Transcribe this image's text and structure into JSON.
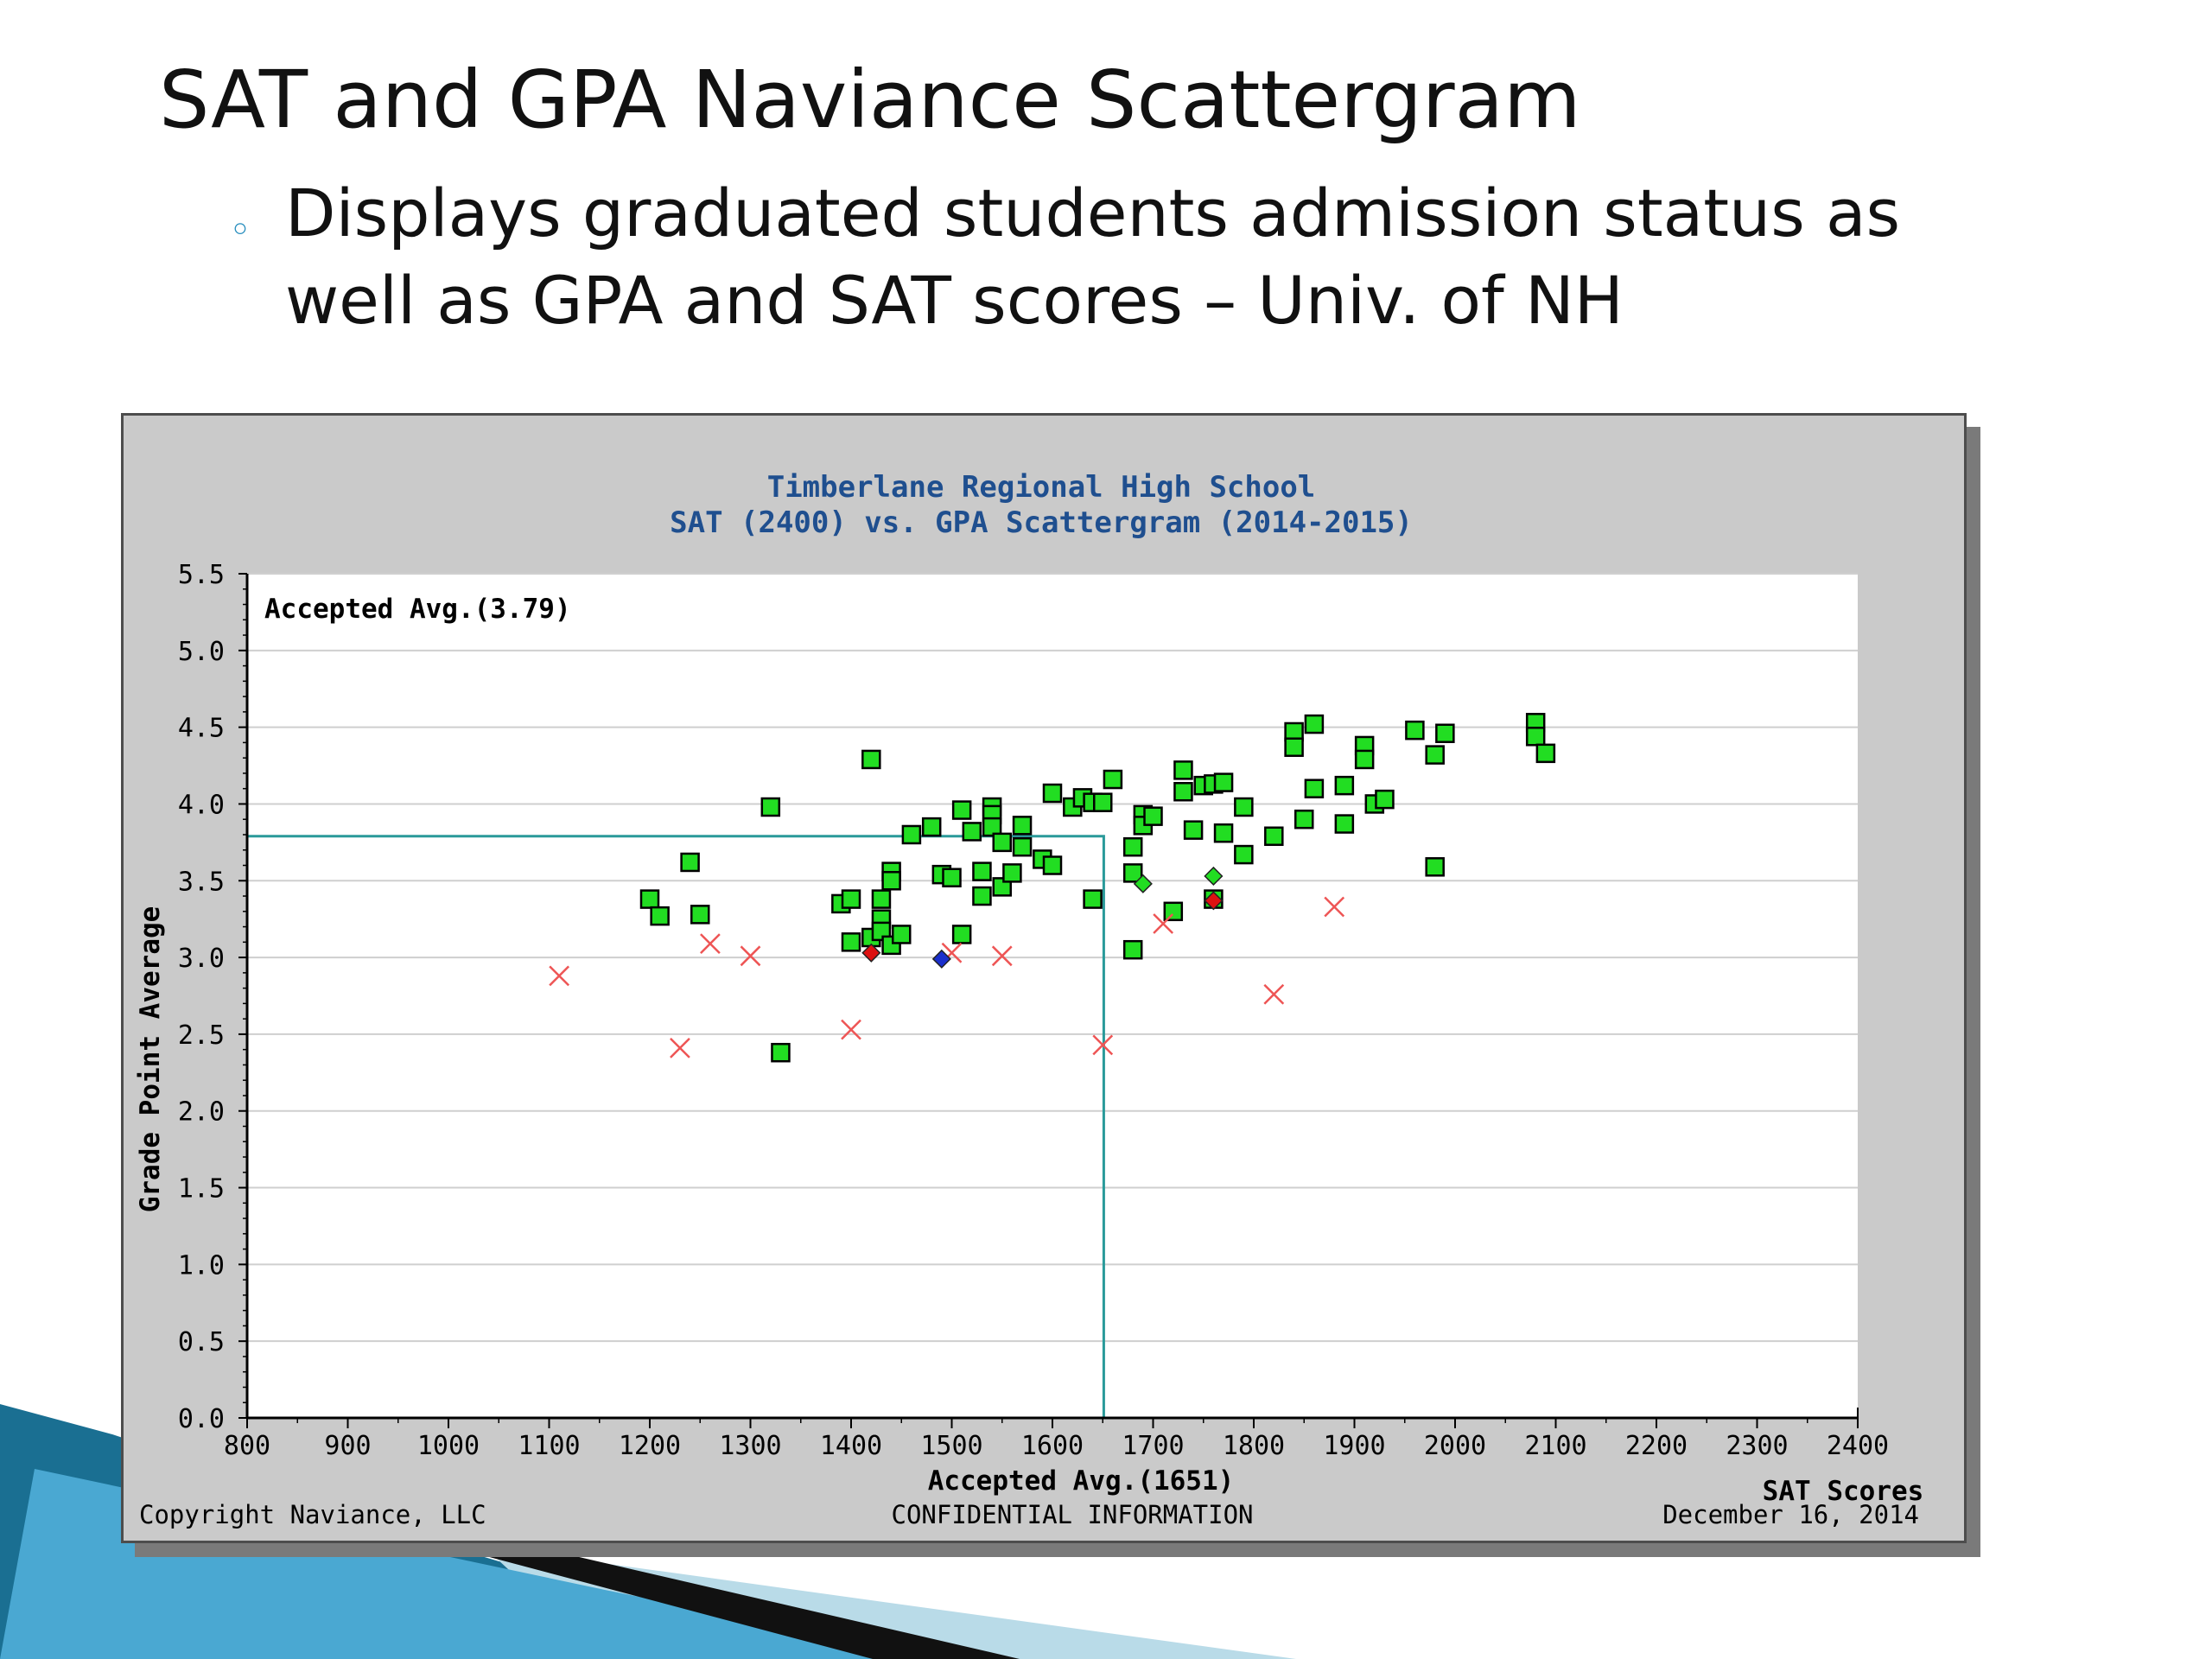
{
  "slide": {
    "title": "SAT and GPA Naviance Scattergram",
    "bullet_marker": "◦",
    "bullet_line1": "Displays graduated students admission status as",
    "bullet_line2": "well as GPA and SAT scores – Univ. of NH"
  },
  "colors": {
    "accepted": "#22dd22",
    "denied": "#ee5555",
    "waitlisted_accepted": "#dd1111",
    "waitlisted": "#1a2fcc",
    "avg_line": "#2a9a9a",
    "title_text": "#1f4f8f",
    "plot_bg": "#ffffff",
    "panel_bg": "#cacaca"
  },
  "chart_data": {
    "type": "scatter",
    "title": "Timberlane Regional High School",
    "subtitle": "SAT (2400) vs. GPA Scattergram (2014-2015)",
    "xlabel": "SAT Scores",
    "ylabel": "Grade Point Average",
    "xlim": [
      800,
      2400
    ],
    "ylim": [
      0,
      5.5
    ],
    "x_ticks": [
      "800",
      "900",
      "1000",
      "1100",
      "1200",
      "1300",
      "1400",
      "1500",
      "1600",
      "1700",
      "1800",
      "1900",
      "2000",
      "2100",
      "2200",
      "2300",
      "2400"
    ],
    "y_ticks": [
      "0.0",
      "0.5",
      "1.0",
      "1.5",
      "2.0",
      "2.5",
      "3.0",
      "3.5",
      "4.0",
      "4.5",
      "5.0",
      "5.5"
    ],
    "grid": "horizontal",
    "avg_gpa_label": "Accepted Avg.(3.79)",
    "avg_gpa": 3.79,
    "avg_sat_label": "Accepted Avg.(1651)",
    "avg_sat": 1651,
    "footer_left": "Copyright Naviance, LLC",
    "footer_center": "CONFIDENTIAL INFORMATION",
    "footer_right": "December 16, 2014",
    "series": [
      {
        "marker": "square",
        "color": "#22dd22",
        "points": [
          [
            1200,
            3.38
          ],
          [
            1210,
            3.27
          ],
          [
            1240,
            3.62
          ],
          [
            1250,
            3.28
          ],
          [
            1320,
            3.98
          ],
          [
            1330,
            2.38
          ],
          [
            1390,
            3.35
          ],
          [
            1400,
            3.38
          ],
          [
            1400,
            3.1
          ],
          [
            1420,
            4.29
          ],
          [
            1420,
            3.13
          ],
          [
            1430,
            3.38
          ],
          [
            1430,
            3.25
          ],
          [
            1430,
            3.17
          ],
          [
            1440,
            3.56
          ],
          [
            1440,
            3.5
          ],
          [
            1440,
            3.08
          ],
          [
            1450,
            3.15
          ],
          [
            1460,
            3.8
          ],
          [
            1480,
            3.85
          ],
          [
            1490,
            3.54
          ],
          [
            1500,
            3.52
          ],
          [
            1510,
            3.96
          ],
          [
            1510,
            3.15
          ],
          [
            1520,
            3.82
          ],
          [
            1530,
            3.56
          ],
          [
            1530,
            3.4
          ],
          [
            1540,
            3.98
          ],
          [
            1540,
            3.93
          ],
          [
            1540,
            3.85
          ],
          [
            1550,
            3.75
          ],
          [
            1550,
            3.46
          ],
          [
            1560,
            3.55
          ],
          [
            1570,
            3.86
          ],
          [
            1570,
            3.72
          ],
          [
            1590,
            3.64
          ],
          [
            1600,
            4.07
          ],
          [
            1600,
            3.6
          ],
          [
            1620,
            3.98
          ],
          [
            1630,
            4.04
          ],
          [
            1640,
            4.01
          ],
          [
            1640,
            3.38
          ],
          [
            1650,
            4.01
          ],
          [
            1660,
            4.16
          ],
          [
            1680,
            3.72
          ],
          [
            1680,
            3.55
          ],
          [
            1680,
            3.05
          ],
          [
            1690,
            3.93
          ],
          [
            1690,
            3.86
          ],
          [
            1700,
            3.92
          ],
          [
            1720,
            3.3
          ],
          [
            1730,
            4.22
          ],
          [
            1730,
            4.08
          ],
          [
            1740,
            3.83
          ],
          [
            1750,
            4.12
          ],
          [
            1760,
            4.13
          ],
          [
            1760,
            3.38
          ],
          [
            1770,
            4.14
          ],
          [
            1770,
            3.81
          ],
          [
            1790,
            3.98
          ],
          [
            1790,
            3.67
          ],
          [
            1820,
            3.79
          ],
          [
            1840,
            4.47
          ],
          [
            1840,
            4.37
          ],
          [
            1850,
            3.9
          ],
          [
            1860,
            4.52
          ],
          [
            1860,
            4.1
          ],
          [
            1890,
            4.12
          ],
          [
            1890,
            3.87
          ],
          [
            1910,
            4.38
          ],
          [
            1910,
            4.29
          ],
          [
            1920,
            4.0
          ],
          [
            1930,
            4.03
          ],
          [
            1960,
            4.48
          ],
          [
            1980,
            4.32
          ],
          [
            1980,
            3.59
          ],
          [
            1990,
            4.46
          ],
          [
            2080,
            4.53
          ],
          [
            2080,
            4.44
          ],
          [
            2090,
            4.33
          ]
        ]
      },
      {
        "marker": "x",
        "color": "#ee5555",
        "points": [
          [
            1110,
            2.88
          ],
          [
            1230,
            2.41
          ],
          [
            1260,
            3.09
          ],
          [
            1300,
            3.01
          ],
          [
            1400,
            2.53
          ],
          [
            1500,
            3.03
          ],
          [
            1550,
            3.01
          ],
          [
            1650,
            2.43
          ],
          [
            1710,
            3.22
          ],
          [
            1820,
            2.76
          ],
          [
            1880,
            3.33
          ]
        ]
      },
      {
        "marker": "diamond",
        "color": "#22dd22",
        "points": [
          [
            1690,
            3.48
          ],
          [
            1760,
            3.53
          ]
        ]
      },
      {
        "marker": "diamond",
        "color": "#dd1111",
        "points": [
          [
            1420,
            3.03
          ],
          [
            1760,
            3.37
          ]
        ]
      },
      {
        "marker": "diamond",
        "color": "#1a2fcc",
        "points": [
          [
            1490,
            2.99
          ]
        ]
      }
    ]
  }
}
